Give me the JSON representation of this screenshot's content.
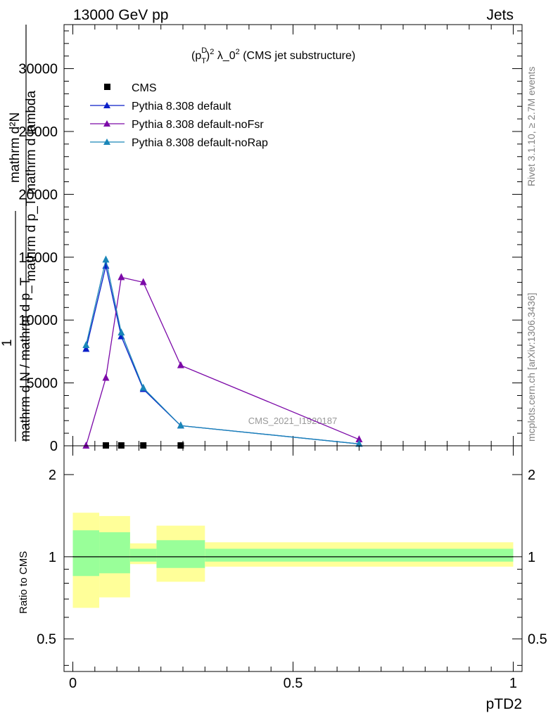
{
  "header": {
    "left": "13000 GeV pp",
    "right": "Jets"
  },
  "side_labels": {
    "rivet": "Rivet 3.1.10, ≥ 2.7M events",
    "mcplots": "mcplots.cern.ch [arXiv:1306.3436]"
  },
  "watermark": "CMS_2021_I1920187",
  "main_plot": {
    "title": "(p_T^D)^2 λ_0^2 (CMS jet substructure)",
    "title_parts": {
      "a": "(p",
      "sup_d": "D",
      "sub_t": "T",
      "b": ")",
      "sup2": "2",
      "c": " λ_0",
      "sup3": "2",
      "d": " (CMS jet substructure)"
    },
    "ylabel_top": "mathrm d²N",
    "ylabel_top2": "mathrm d p_T mathrm d lambda",
    "ylabel_one": "1",
    "ylabel_bottom": "mathrm d N / mathrm d p_T",
    "ylabel_bottom2": "mathrm d N / mathrm d p_T",
    "ytick_labels": [
      "0",
      "5000",
      "10000",
      "15000",
      "20000",
      "25000",
      "30000"
    ]
  },
  "ratio_plot": {
    "ylabel": "Ratio to CMS",
    "ytick_labels": [
      "0.5",
      "1",
      "2"
    ]
  },
  "xlabel": "pTD2",
  "xtick_labels": [
    "0",
    "0.5",
    "1"
  ],
  "colors": {
    "data": "#000000",
    "default": "#0a1fc8",
    "noFsr": "#7c0aa8",
    "noRap": "#1a86b8",
    "band_outer": "#ffff99",
    "band_inner": "#99ff99"
  },
  "chart_data": {
    "type": "line",
    "title": "(p_T^D)^2 λ_0^2 (CMS jet substructure)",
    "xlabel": "pTD2",
    "ylabel": "1 / (mathrm d N / mathrm d p_T) · mathrm d²N / (mathrm d p_T mathrm d lambda)",
    "xlim": [
      -0.02,
      1.02
    ],
    "ylim": [
      0,
      33500
    ],
    "legend_position": "top-left",
    "series": [
      {
        "name": "CMS",
        "marker": "square",
        "x": [
          0.075,
          0.11,
          0.16,
          0.245
        ],
        "y": [
          0,
          0,
          0,
          0
        ]
      },
      {
        "name": "Pythia 8.308 default",
        "marker": "triangle",
        "x": [
          0.03,
          0.075,
          0.11,
          0.16,
          0.245,
          0.65
        ],
        "y": [
          7700,
          14300,
          8700,
          4500,
          1600,
          150
        ]
      },
      {
        "name": "Pythia 8.308 default-noFsr",
        "marker": "triangle",
        "x": [
          0.03,
          0.075,
          0.11,
          0.16,
          0.245,
          0.65
        ],
        "y": [
          0,
          5400,
          13400,
          13000,
          6400,
          500
        ]
      },
      {
        "name": "Pythia 8.308 default-noRap",
        "marker": "triangle",
        "x": [
          0.03,
          0.075,
          0.11,
          0.16,
          0.245,
          0.65
        ],
        "y": [
          8000,
          14800,
          9000,
          4600,
          1600,
          150
        ]
      }
    ],
    "ratio": {
      "ylabel": "Ratio to CMS",
      "ylim": [
        0.38,
        2.55
      ],
      "log_scale": true,
      "reference_line": 1,
      "bands": [
        {
          "x0": 0.0,
          "x1": 0.06,
          "outer": [
            0.65,
            1.45
          ],
          "inner": [
            0.85,
            1.25
          ]
        },
        {
          "x0": 0.06,
          "x1": 0.13,
          "outer": [
            0.71,
            1.41
          ],
          "inner": [
            0.87,
            1.23
          ]
        },
        {
          "x0": 0.13,
          "x1": 0.19,
          "outer": [
            0.94,
            1.12
          ],
          "inner": [
            0.96,
            1.07
          ]
        },
        {
          "x0": 0.19,
          "x1": 0.3,
          "outer": [
            0.81,
            1.3
          ],
          "inner": [
            0.91,
            1.15
          ]
        },
        {
          "x0": 0.3,
          "x1": 1.0,
          "outer": [
            0.92,
            1.13
          ],
          "inner": [
            0.96,
            1.07
          ]
        }
      ]
    }
  }
}
